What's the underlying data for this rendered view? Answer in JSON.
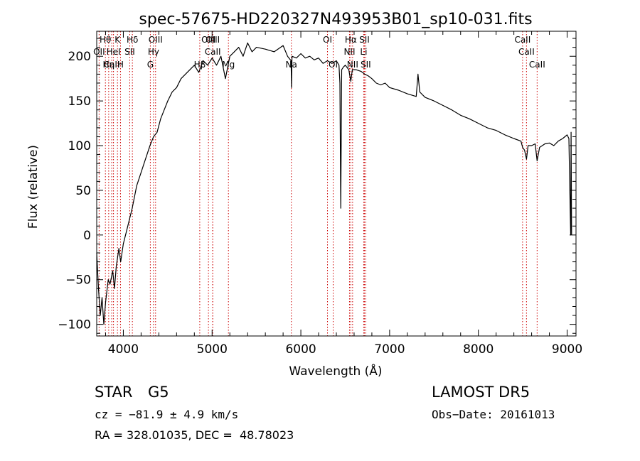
{
  "chart_data": {
    "type": "line",
    "title": "spec-57675-HD220327N493953B01_sp10-031.fits",
    "xlabel": "Wavelength (Å)",
    "ylabel": "Flux (relative)",
    "xlim": [
      3700,
      9100
    ],
    "ylim": [
      -113,
      228
    ],
    "xticks": [
      4000,
      5000,
      6000,
      7000,
      8000,
      9000
    ],
    "yticks": [
      -100,
      -50,
      0,
      50,
      100,
      150,
      200
    ],
    "grid": false,
    "line_color": "#000000",
    "marker_color": "#cc0000",
    "series": [
      {
        "x": [
          3700,
          3720,
          3740,
          3760,
          3780,
          3800,
          3830,
          3850,
          3880,
          3900,
          3920,
          3950,
          3970,
          4000,
          4050,
          4100,
          4150,
          4200,
          4250,
          4300,
          4340,
          4380,
          4420,
          4460,
          4500,
          4550,
          4600,
          4650,
          4700,
          4750,
          4800,
          4850,
          4900,
          4950,
          5000,
          5050,
          5100,
          5150,
          5200,
          5250,
          5300,
          5350,
          5400,
          5450,
          5500,
          5600,
          5700,
          5800,
          5850,
          5890,
          5895,
          5900,
          5950,
          6000,
          6050,
          6100,
          6150,
          6200,
          6250,
          6300,
          6350,
          6400,
          6430,
          6440,
          6450,
          6460,
          6480,
          6500,
          6540,
          6563,
          6580,
          6620,
          6680,
          6720,
          6760,
          6800,
          6850,
          6900,
          6950,
          7000,
          7100,
          7200,
          7300,
          7320,
          7340,
          7400,
          7500,
          7600,
          7700,
          7800,
          7900,
          8000,
          8100,
          8200,
          8300,
          8400,
          8480,
          8498,
          8520,
          8542,
          8560,
          8600,
          8640,
          8662,
          8690,
          8750,
          8800,
          8850,
          8900,
          8950,
          9000,
          9020,
          9040,
          9045,
          9050
        ],
        "y": [
          -20,
          -60,
          -90,
          -70,
          -100,
          -75,
          -50,
          -55,
          -40,
          -60,
          -35,
          -15,
          -30,
          -10,
          10,
          30,
          55,
          70,
          85,
          100,
          110,
          115,
          130,
          140,
          150,
          160,
          165,
          175,
          180,
          185,
          190,
          182,
          195,
          190,
          198,
          190,
          200,
          175,
          200,
          205,
          210,
          200,
          215,
          205,
          210,
          208,
          205,
          212,
          200,
          195,
          165,
          200,
          198,
          203,
          198,
          200,
          196,
          198,
          192,
          195,
          192,
          195,
          190,
          170,
          30,
          185,
          188,
          190,
          185,
          172,
          185,
          185,
          183,
          180,
          178,
          175,
          170,
          168,
          170,
          165,
          162,
          158,
          155,
          180,
          160,
          154,
          150,
          145,
          140,
          134,
          130,
          125,
          120,
          117,
          112,
          108,
          105,
          98,
          95,
          85,
          100,
          100,
          102,
          83,
          98,
          102,
          103,
          100,
          105,
          108,
          112,
          108,
          0,
          115,
          0
        ]
      }
    ],
    "line_markers": [
      {
        "x": 3798,
        "label": "Hθ",
        "row": 0
      },
      {
        "x": 3835,
        "label": "Hη",
        "row": 2
      },
      {
        "x": 3869,
        "label": "CaII",
        "row": 2
      },
      {
        "x": 3889,
        "label": "HeI",
        "row": 1
      },
      {
        "x": 3934,
        "label": "K",
        "row": 0
      },
      {
        "x": 3968,
        "label": "H",
        "row": 2
      },
      {
        "x": 4102,
        "label": "Hδ",
        "row": 0
      },
      {
        "x": 4072,
        "label": "SII",
        "row": 1
      },
      {
        "x": 3727,
        "label": "OII",
        "row": 1
      },
      {
        "x": 4304,
        "label": "G",
        "row": 2
      },
      {
        "x": 4340,
        "label": "Hγ",
        "row": 1
      },
      {
        "x": 4363,
        "label": "OIII",
        "row": 0
      },
      {
        "x": 4861,
        "label": "Hβ",
        "row": 2
      },
      {
        "x": 4959,
        "label": "OIII",
        "row": 0
      },
      {
        "x": 5007,
        "label": "OIII",
        "row": 0
      },
      {
        "x": 5007,
        "label": "CaII",
        "row": 1
      },
      {
        "x": 5184,
        "label": "Mg",
        "row": 2
      },
      {
        "x": 5893,
        "label": "Na",
        "row": 2
      },
      {
        "x": 6300,
        "label": "OI",
        "row": 0
      },
      {
        "x": 6364,
        "label": "OI",
        "row": 2
      },
      {
        "x": 6548,
        "label": "NII",
        "row": 1
      },
      {
        "x": 6563,
        "label": "Hα",
        "row": 0
      },
      {
        "x": 6583,
        "label": "NII",
        "row": 2
      },
      {
        "x": 6708,
        "label": "Li",
        "row": 1
      },
      {
        "x": 6716,
        "label": "SII",
        "row": 0
      },
      {
        "x": 6731,
        "label": "SII",
        "row": 2
      },
      {
        "x": 8498,
        "label": "CaII",
        "row": 0
      },
      {
        "x": 8542,
        "label": "CaII",
        "row": 1
      },
      {
        "x": 8662,
        "label": "CaII",
        "row": 2
      }
    ]
  },
  "info": {
    "object_type": "STAR",
    "subclass": "G5",
    "survey": "LAMOST DR5",
    "redshift_line": "cz = −81.9 ± 4.9 km/s",
    "obs_date": "Obs−Date: 20161013",
    "coords": "RA = 328.01035, DEC =  48.78023"
  }
}
